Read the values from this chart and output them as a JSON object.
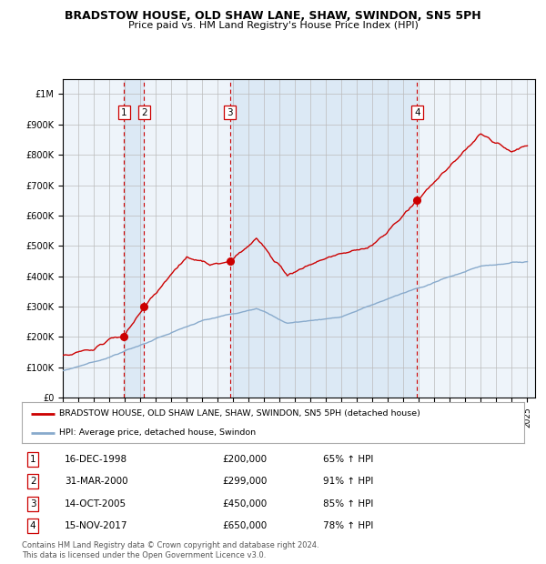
{
  "title": "BRADSTOW HOUSE, OLD SHAW LANE, SHAW, SWINDON, SN5 5PH",
  "subtitle": "Price paid vs. HM Land Registry's House Price Index (HPI)",
  "legend_line1": "BRADSTOW HOUSE, OLD SHAW LANE, SHAW, SWINDON, SN5 5PH (detached house)",
  "legend_line2": "HPI: Average price, detached house, Swindon",
  "footnote": "Contains HM Land Registry data © Crown copyright and database right 2024.\nThis data is licensed under the Open Government Licence v3.0.",
  "transactions": [
    {
      "id": 1,
      "date": "16-DEC-1998",
      "price": 200000,
      "hpi_pct": "65% ↑ HPI",
      "year": 1998.96
    },
    {
      "id": 2,
      "date": "31-MAR-2000",
      "price": 299000,
      "hpi_pct": "91% ↑ HPI",
      "year": 2000.25
    },
    {
      "id": 3,
      "date": "14-OCT-2005",
      "price": 450000,
      "hpi_pct": "85% ↑ HPI",
      "year": 2005.79
    },
    {
      "id": 4,
      "date": "15-NOV-2017",
      "price": 650000,
      "hpi_pct": "78% ↑ HPI",
      "year": 2017.88
    }
  ],
  "vline_color": "#cc0000",
  "vband_color": "#dce9f5",
  "red_line_color": "#cc0000",
  "blue_line_color": "#88aacc",
  "bg_color": "#eef4fa",
  "grid_color": "#bbbbbb",
  "ylim": [
    0,
    1050000
  ],
  "xlim_start": 1995.0,
  "xlim_end": 2025.5
}
